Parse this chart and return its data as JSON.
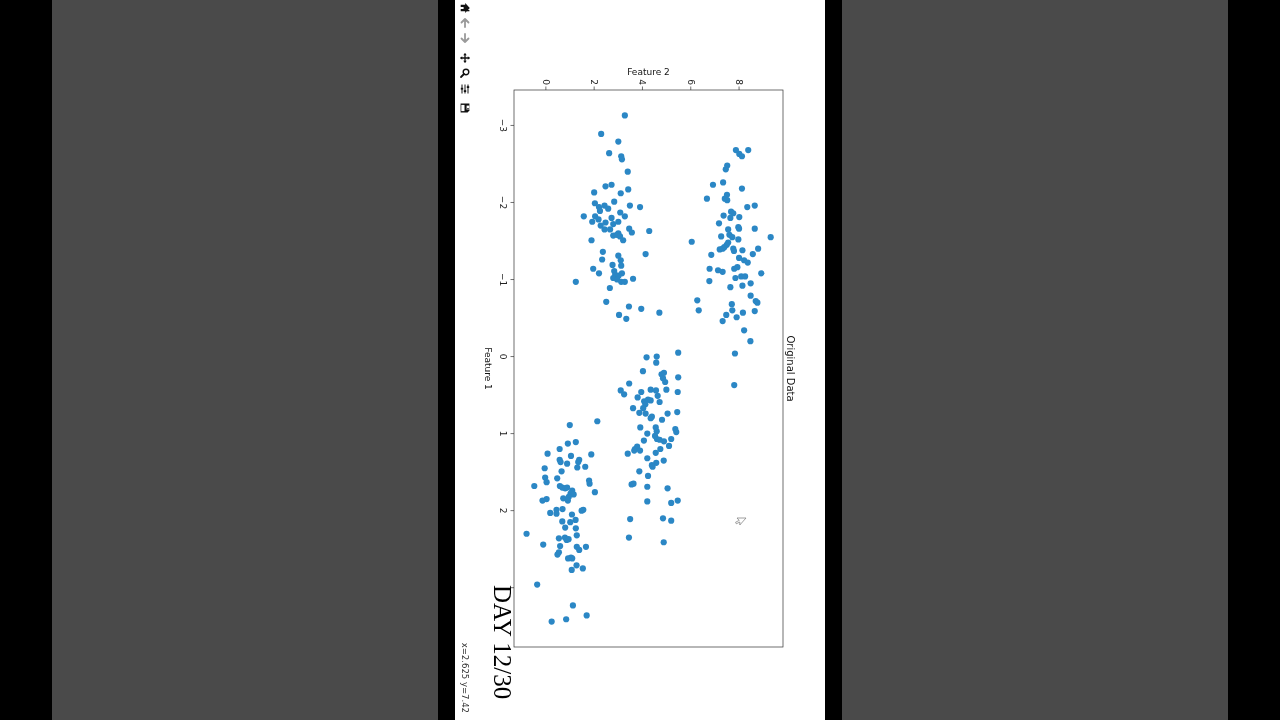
{
  "chart_data": {
    "type": "scatter",
    "title": "Original Data",
    "xlabel": "Feature 2",
    "ylabel": "Feature 1",
    "xlim": [
      -1.32,
      9.82
    ],
    "ylim": [
      3.77,
      -3.46
    ],
    "xticks": [
      0,
      2,
      4,
      6,
      8
    ],
    "yticks": [
      {
        "value": -3,
        "label": "−3"
      },
      {
        "value": -2,
        "label": "−2"
      },
      {
        "value": -1,
        "label": "−1"
      },
      0,
      1,
      2,
      {
        "value": 3,
        "label": null
      }
    ],
    "marker": "circle",
    "color": "#2b87c5",
    "values": [
      -2.68,
      -2.68,
      -2.63,
      -2.6,
      -2.48,
      -2.43,
      -2.26,
      -2.23,
      -2.18,
      -2.05,
      -2.1,
      -2.05,
      -2.03,
      -1.94,
      -1.96,
      -1.88,
      -1.86,
      -1.83,
      -1.8,
      -1.81,
      -1.73,
      -1.68,
      -1.66,
      -1.66,
      -1.65,
      -1.49,
      -1.55,
      -1.56,
      -1.58,
      -1.55,
      -1.52,
      -1.48,
      -1.45,
      -1.42,
      -1.4,
      -1.39,
      -1.4,
      -1.37,
      -1.38,
      -1.4,
      -1.33,
      -1.32,
      -1.28,
      -1.25,
      -1.22,
      -1.14,
      -1.12,
      -1.1,
      -1.14,
      -1.16,
      -1.08,
      -1.02,
      -1.04,
      -1.04,
      -0.98,
      -0.95,
      -0.9,
      -0.92,
      -0.79,
      -0.73,
      -0.72,
      -0.7,
      -0.68,
      -0.6,
      -0.6,
      -0.59,
      -0.57,
      -0.54,
      -0.51,
      -0.46,
      -0.34,
      -0.2,
      -0.04,
      0.37,
      -3.13,
      -2.89,
      -2.79,
      -2.64,
      -2.6,
      -2.56,
      -2.4,
      -2.23,
      -2.21,
      -2.17,
      -2.13,
      -2.12,
      -1.99,
      -2.01,
      -1.96,
      -1.96,
      -1.94,
      -1.94,
      -1.92,
      -1.89,
      -1.87,
      -1.82,
      -1.82,
      -1.82,
      -1.8,
      -1.78,
      -1.75,
      -1.74,
      -1.75,
      -1.72,
      -1.7,
      -1.65,
      -1.65,
      -1.66,
      -1.61,
      -1.63,
      -1.6,
      -1.57,
      -1.58,
      -1.56,
      -1.51,
      -1.51,
      -1.36,
      -1.33,
      -1.31,
      -1.26,
      -1.25,
      -1.19,
      -1.18,
      -1.14,
      -1.11,
      -1.08,
      -1.06,
      -1.05,
      -1.08,
      -1.02,
      -1.01,
      -1.0,
      -0.97,
      -0.97,
      -0.97,
      -0.89,
      -0.71,
      -0.65,
      -0.62,
      -0.57,
      -0.54,
      -0.49,
      0.01,
      0.0,
      -0.05,
      0.08,
      0.19,
      0.23,
      0.21,
      0.28,
      0.27,
      0.33,
      0.35,
      0.44,
      0.49,
      0.46,
      0.43,
      0.44,
      0.43,
      0.46,
      0.53,
      0.51,
      0.58,
      0.56,
      0.57,
      0.59,
      0.62,
      0.67,
      0.67,
      0.73,
      0.74,
      0.78,
      0.8,
      0.74,
      0.72,
      0.82,
      0.92,
      0.92,
      0.94,
      0.98,
      0.97,
      1.0,
      1.03,
      1.07,
      1.08,
      1.1,
      1.07,
      1.09,
      1.16,
      1.17,
      1.2,
      1.22,
      1.22,
      1.26,
      1.2,
      1.25,
      1.32,
      1.35,
      1.38,
      1.41,
      1.43,
      1.49,
      1.55,
      1.66,
      1.65,
      1.69,
      1.71,
      1.88,
      1.9,
      1.87,
      2.11,
      2.1,
      2.13,
      2.35,
      2.41,
      0.84,
      0.89,
      1.11,
      1.13,
      1.26,
      1.2,
      1.27,
      1.29,
      1.34,
      1.37,
      1.34,
      1.37,
      1.39,
      1.43,
      1.44,
      1.45,
      1.49,
      1.57,
      1.63,
      1.58,
      1.61,
      1.65,
      1.68,
      1.68,
      1.7,
      1.71,
      1.7,
      1.74,
      1.78,
      1.79,
      1.76,
      1.84,
      1.82,
      1.87,
      1.85,
      1.87,
      1.99,
      1.98,
      1.99,
      2.0,
      2.03,
      2.04,
      2.05,
      2.12,
      2.15,
      2.14,
      2.22,
      2.23,
      2.3,
      2.32,
      2.44,
      2.36,
      2.35,
      2.38,
      2.37,
      2.46,
      2.47,
      2.51,
      2.47,
      2.54,
      2.57,
      2.61,
      2.62,
      2.62,
      2.71,
      2.75,
      2.77,
      2.96,
      3.23,
      3.36,
      3.41,
      3.44
    ],
    "x": [
      8.38,
      7.87,
      8.01,
      8.12,
      7.51,
      7.45,
      7.34,
      6.92,
      8.12,
      6.67,
      7.5,
      7.41,
      7.51,
      8.34,
      8.65,
      7.67,
      7.76,
      7.36,
      7.64,
      8.01,
      7.17,
      7.97,
      8.0,
      8.65,
      7.55,
      6.04,
      9.31,
      7.26,
      7.6,
      7.72,
      7.97,
      7.55,
      7.49,
      7.39,
      7.32,
      7.2,
      7.76,
      7.79,
      8.14,
      8.79,
      8.57,
      6.85,
      8.0,
      8.21,
      8.36,
      6.78,
      7.13,
      7.32,
      7.8,
      7.93,
      8.92,
      7.85,
      8.09,
      8.25,
      6.77,
      8.48,
      7.64,
      8.14,
      8.48,
      6.27,
      8.69,
      8.76,
      7.7,
      6.33,
      7.72,
      8.65,
      8.16,
      7.47,
      7.9,
      7.32,
      8.21,
      8.47,
      7.83,
      7.8,
      3.27,
      2.29,
      3.0,
      2.62,
      3.12,
      3.15,
      3.39,
      2.72,
      2.47,
      3.41,
      2.0,
      3.1,
      2.03,
      2.83,
      2.43,
      3.48,
      2.2,
      3.9,
      2.58,
      2.24,
      3.08,
      1.57,
      2.04,
      3.27,
      2.72,
      2.18,
      1.92,
      2.47,
      3.0,
      2.79,
      2.27,
      2.43,
      2.66,
      3.45,
      3.56,
      4.28,
      3.0,
      2.79,
      2.94,
      3.07,
      3.2,
      1.89,
      2.36,
      4.13,
      3.0,
      2.33,
      3.1,
      2.76,
      3.12,
      1.96,
      2.83,
      2.2,
      2.87,
      3.01,
      3.15,
      2.79,
      3.61,
      2.95,
      3.12,
      3.27,
      1.24,
      2.65,
      2.5,
      3.44,
      3.95,
      4.7,
      3.03,
      3.33,
      4.17,
      4.59,
      5.48,
      4.57,
      4.02,
      4.79,
      4.89,
      4.85,
      5.48,
      4.94,
      3.45,
      3.1,
      3.24,
      3.95,
      4.34,
      4.56,
      4.99,
      5.46,
      3.8,
      4.63,
      4.07,
      4.23,
      4.34,
      4.71,
      4.12,
      3.61,
      4.03,
      3.87,
      4.13,
      4.39,
      4.34,
      5.04,
      5.44,
      4.81,
      3.91,
      4.55,
      5.36,
      5.4,
      4.59,
      4.2,
      4.52,
      4.6,
      4.71,
      4.89,
      5.19,
      4.06,
      5.1,
      3.78,
      3.69,
      3.66,
      3.9,
      3.39,
      4.74,
      4.55,
      4.2,
      4.88,
      4.57,
      4.39,
      4.42,
      3.87,
      4.23,
      3.55,
      3.63,
      4.2,
      5.04,
      4.2,
      5.19,
      5.46,
      3.49,
      4.85,
      5.19,
      3.44,
      4.88,
      2.13,
      0.99,
      1.24,
      0.91,
      0.07,
      0.57,
      1.88,
      1.04,
      0.57,
      0.61,
      1.38,
      1.34,
      0.88,
      1.63,
      1.3,
      -0.05,
      0.65,
      -0.03,
      0.03,
      0.47,
      1.79,
      1.81,
      -0.48,
      0.58,
      0.68,
      0.8,
      0.88,
      1.09,
      1.02,
      1.15,
      2.03,
      0.72,
      0.95,
      0.91,
      0.03,
      -0.14,
      0.44,
      0.69,
      1.55,
      1.48,
      0.18,
      0.44,
      1.08,
      1.23,
      1.01,
      0.68,
      0.8,
      1.24,
      -0.8,
      1.28,
      -0.11,
      0.54,
      0.79,
      0.86,
      0.94,
      0.59,
      1.28,
      1.38,
      1.66,
      0.54,
      0.48,
      1.04,
      0.92,
      1.09,
      1.27,
      1.53,
      1.07,
      -0.36,
      1.12,
      1.69,
      0.84,
      0.24
    ],
    "annotations": [
      "DAY 12/30",
      "x=2.625 y=7.42"
    ]
  }
}
